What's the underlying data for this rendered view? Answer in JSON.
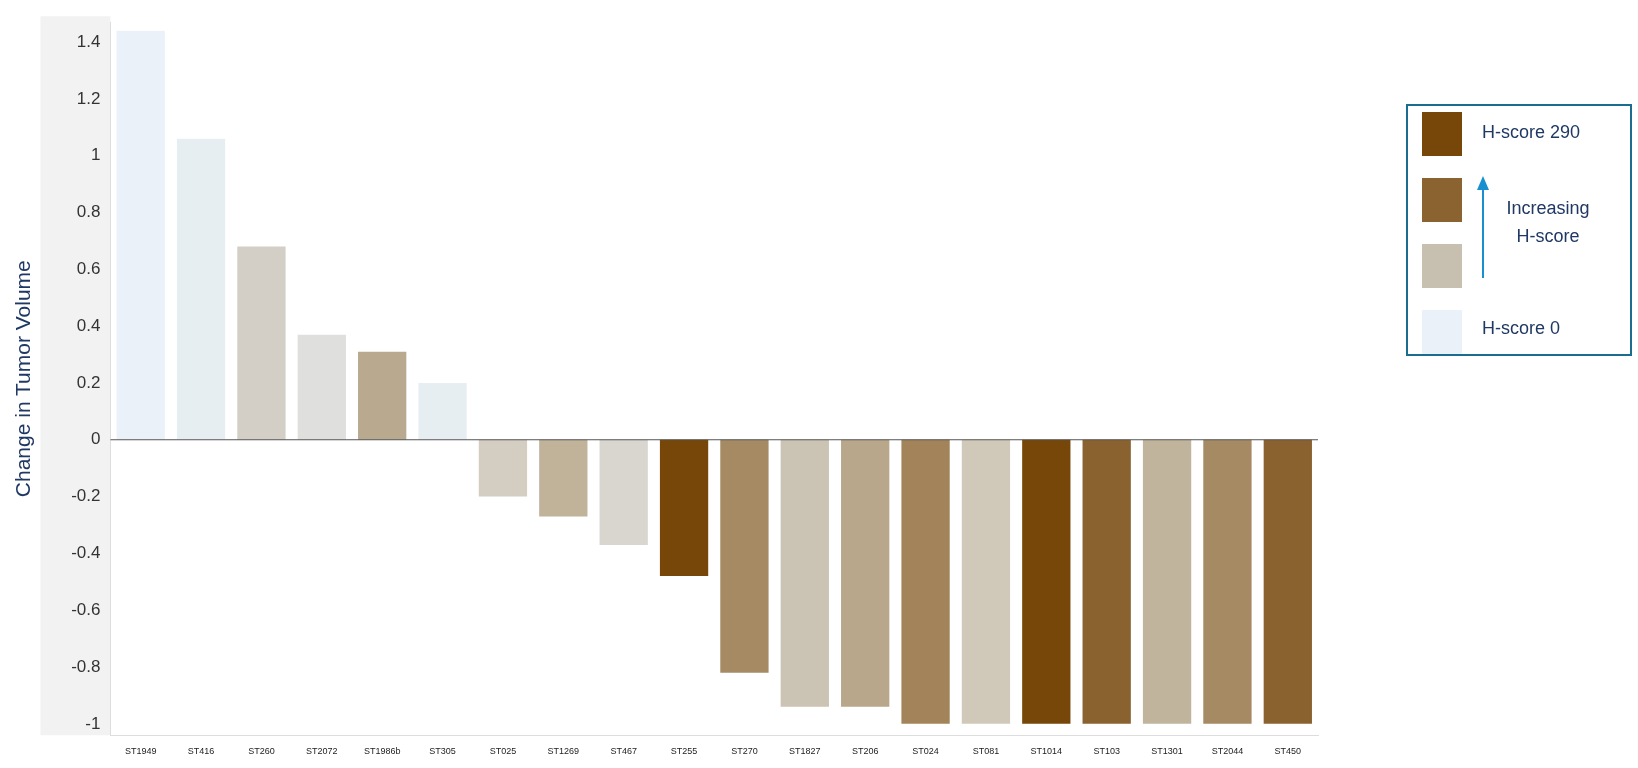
{
  "chart_data": {
    "type": "bar",
    "ylabel": "Change in Tumor Volume",
    "categories": [
      "ST1949",
      "ST416",
      "ST260",
      "ST2072",
      "ST1986b",
      "ST305",
      "ST025",
      "ST1269",
      "ST467",
      "ST255",
      "ST270",
      "ST1827",
      "ST206",
      "ST024",
      "ST081",
      "ST1014",
      "ST103",
      "ST1301",
      "ST2044",
      "ST450"
    ],
    "values": [
      1.44,
      1.06,
      0.68,
      0.37,
      0.31,
      0.2,
      -0.2,
      -0.27,
      -0.37,
      -0.48,
      -0.82,
      -0.94,
      -0.94,
      -1,
      -1,
      -1,
      -1,
      -1,
      -1,
      -1
    ],
    "colors": [
      "#eaf1f8",
      "#e6eef2",
      "#d3cfc6",
      "#dfe0dd",
      "#b9a98f",
      "#e6eef2",
      "#d3cdc2",
      "#c1b29a",
      "#d8d6cf",
      "#764708",
      "#a58a63",
      "#cbc3b3",
      "#b8a78b",
      "#a3845a",
      "#d0c9ba",
      "#764708",
      "#8a622f",
      "#c1b49d",
      "#a58a63",
      "#8a622f"
    ],
    "ylim": [
      -1.04,
      1.47
    ],
    "yticks": [
      -1,
      -0.8,
      -0.6,
      -0.4,
      -0.2,
      0,
      0.2,
      0.4,
      0.6,
      0.8,
      1,
      1.2,
      1.4
    ],
    "grid": false,
    "legend": false,
    "ref_lines": [
      {
        "axis": "y",
        "value": 0,
        "color": "#555555"
      }
    ],
    "annotations": [
      "H-score 290",
      "Increasing H-score",
      "H-score 0"
    ]
  }
}
